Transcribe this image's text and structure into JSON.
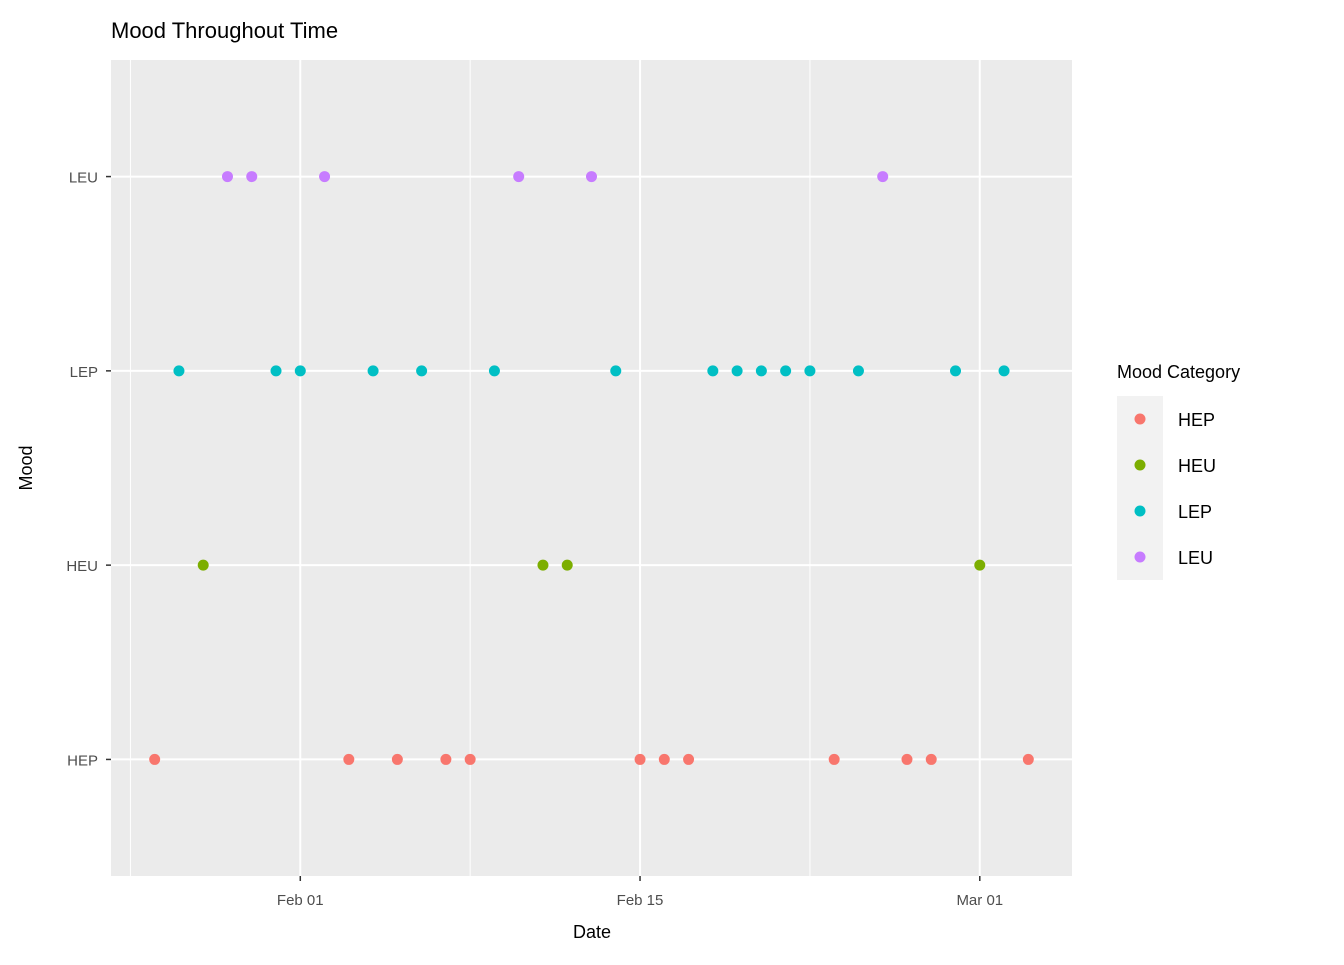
{
  "chart_data": {
    "type": "scatter",
    "title": "Mood Throughout Time",
    "xlabel": "Date",
    "ylabel": "Mood",
    "x_ticks": [
      {
        "label": "Feb 01",
        "date": "02-01"
      },
      {
        "label": "Feb 15",
        "date": "02-15"
      },
      {
        "label": "Mar 01",
        "date": "03-01"
      }
    ],
    "x_minor_dates": [
      "01-25",
      "02-08",
      "02-22"
    ],
    "xlim": [
      "01-26",
      "03-03"
    ],
    "y_categories": [
      "HEP",
      "HEU",
      "LEP",
      "LEU"
    ],
    "grid": true,
    "legend": {
      "title": "Mood Category",
      "placement": "right"
    },
    "series": [
      {
        "name": "HEP",
        "color": "#F8766D",
        "y": "HEP",
        "dates": [
          "01-26",
          "02-03",
          "02-05",
          "02-07",
          "02-08",
          "02-15",
          "02-16",
          "02-17",
          "02-23",
          "02-26",
          "02-27",
          "03-03"
        ]
      },
      {
        "name": "HEU",
        "color": "#7CAE00",
        "y": "HEU",
        "dates": [
          "01-28",
          "02-11",
          "02-12",
          "03-01"
        ]
      },
      {
        "name": "LEP",
        "color": "#00BFC4",
        "y": "LEP",
        "dates": [
          "01-27",
          "01-31",
          "02-01",
          "02-04",
          "02-06",
          "02-09",
          "02-14",
          "02-18",
          "02-19",
          "02-20",
          "02-21",
          "02-22",
          "02-24",
          "02-28",
          "03-02"
        ]
      },
      {
        "name": "LEU",
        "color": "#C77CFF",
        "y": "LEU",
        "dates": [
          "01-29",
          "01-30",
          "02-02",
          "02-10",
          "02-13",
          "02-25"
        ]
      }
    ]
  }
}
